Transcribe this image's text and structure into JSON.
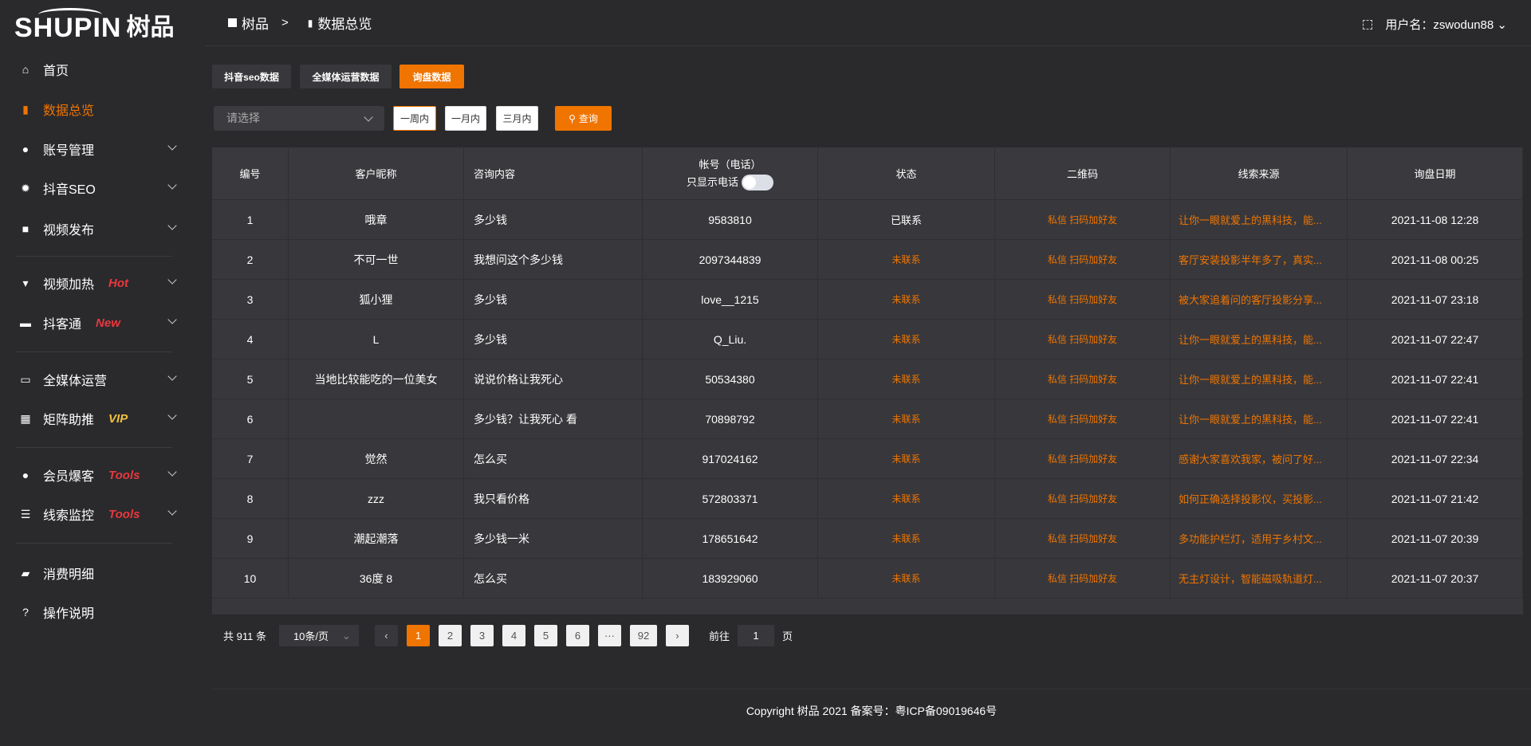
{
  "logo": {
    "en": "SHUPIN",
    "cn": "树品"
  },
  "sidebar": {
    "items": [
      {
        "label": "首页",
        "icon": "home-icon",
        "glyph": "⌂"
      },
      {
        "label": "数据总览",
        "icon": "bar-chart-icon",
        "glyph": "▮"
      },
      {
        "label": "账号管理",
        "icon": "user-icon",
        "glyph": "●"
      },
      {
        "label": "抖音SEO",
        "icon": "gear-icon",
        "glyph": "✹"
      },
      {
        "label": "视频发布",
        "icon": "video-camera-icon",
        "glyph": "■"
      },
      {
        "label": "视频加热",
        "icon": "heat-icon",
        "glyph": "▾",
        "badge": "Hot"
      },
      {
        "label": "抖客通",
        "icon": "chat-icon",
        "glyph": "▬",
        "badge": "New"
      },
      {
        "label": "全媒体运营",
        "icon": "monitor-icon",
        "glyph": "▭"
      },
      {
        "label": "矩阵助推",
        "icon": "grid-icon",
        "glyph": "▦",
        "badge": "VIP"
      },
      {
        "label": "会员爆客",
        "icon": "member-icon",
        "glyph": "●",
        "badge": "Tools"
      },
      {
        "label": "线索监控",
        "icon": "sliders-icon",
        "glyph": "☰",
        "badge": "Tools"
      },
      {
        "label": "消费明细",
        "icon": "wallet-icon",
        "glyph": "▰"
      },
      {
        "label": "操作说明",
        "icon": "help-icon",
        "glyph": "?"
      }
    ]
  },
  "header": {
    "crumb1": "树品",
    "sep": ">",
    "crumb2": "数据总览",
    "user": "用户名：zswodun88"
  },
  "tabs": [
    "抖音seo数据",
    "全媒体运营数据",
    "询盘数据"
  ],
  "filter": {
    "placeholder": "请选择",
    "ranges": [
      "一周内",
      "一月内",
      "三月内"
    ],
    "query": "查询"
  },
  "table": {
    "headers": [
      "编号",
      "客户昵称",
      "咨询内容",
      "帐号（电话）",
      "状态",
      "二维码",
      "线索来源",
      "询盘日期"
    ],
    "phone_toggle_label": "只显示电话",
    "rows": [
      [
        "1",
        "哦章",
        "多少钱",
        "9583810",
        "已联系",
        "私信 扫码加好友",
        "让你一眼就爱上的黑科技，能...",
        "2021-11-08 12:28"
      ],
      [
        "2",
        "不可一世",
        "我想问这个多少钱",
        "2097344839",
        "未联系",
        "私信 扫码加好友",
        "客厅安装投影半年多了，真实...",
        "2021-11-08 00:25"
      ],
      [
        "3",
        "狐小狸",
        "多少钱",
        "love__1215",
        "未联系",
        "私信 扫码加好友",
        "被大家追着问的客厅投影分享...",
        "2021-11-07 23:18"
      ],
      [
        "4",
        "L",
        "多少钱",
        "Q_Liu.",
        "未联系",
        "私信 扫码加好友",
        "让你一眼就爱上的黑科技，能...",
        "2021-11-07 22:47"
      ],
      [
        "5",
        "当地比较能吃的一位美女",
        "说说价格让我死心",
        "50534380",
        "未联系",
        "私信 扫码加好友",
        "让你一眼就爱上的黑科技，能...",
        "2021-11-07 22:41"
      ],
      [
        "6",
        "",
        "多少钱？让我死心 看",
        "70898792",
        "未联系",
        "私信 扫码加好友",
        "让你一眼就爱上的黑科技，能...",
        "2021-11-07 22:41"
      ],
      [
        "7",
        "觉然",
        "怎么买",
        "917024162",
        "未联系",
        "私信 扫码加好友",
        "感谢大家喜欢我家，被问了好...",
        "2021-11-07 22:34"
      ],
      [
        "8",
        "zzz",
        "我只看价格",
        "572803371",
        "未联系",
        "私信 扫码加好友",
        "如何正确选择投影仪，买投影...",
        "2021-11-07 21:42"
      ],
      [
        "9",
        "潮起潮落",
        "多少钱一米",
        "178651642",
        "未联系",
        "私信 扫码加好友",
        "多功能护栏灯，适用于乡村文...",
        "2021-11-07 20:39"
      ],
      [
        "10",
        "36度 8",
        "怎么买",
        "183929060",
        "未联系",
        "私信 扫码加好友",
        "无主灯设计，智能磁吸轨道灯...",
        "2021-11-07 20:37"
      ]
    ]
  },
  "pagination": {
    "total": "共 911 条",
    "page_size": "10条/页",
    "pages": [
      "1",
      "2",
      "3",
      "4",
      "5",
      "6",
      "···",
      "92"
    ],
    "current": "1",
    "goto_label": "前往",
    "goto_value": "1",
    "goto_suffix": "页"
  },
  "footer": "Copyright 树品 2021 备案号：粤ICP备09019646号",
  "colors": {
    "accent": "#f07400",
    "badge_red": "#e8383d",
    "badge_vip": "#f0c040"
  }
}
